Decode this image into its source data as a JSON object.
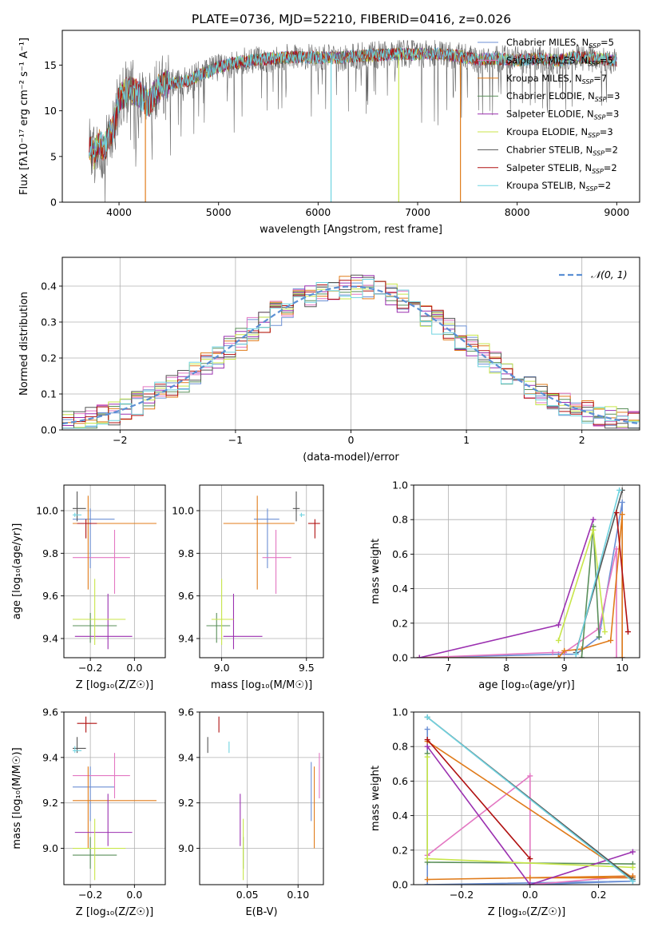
{
  "figure_title": "PLATE=0736, MJD=52210, FIBERID=0416, z=0.026",
  "colors": {
    "chabrier_miles": "#6b8fd4",
    "salpeter_miles": "#e377c2",
    "kroupa_miles": "#e07b1a",
    "chabrier_elodie": "#5a8f5a",
    "salpeter_elodie": "#9b30b0",
    "kroupa_elodie": "#c8e64a",
    "chabrier_stelib": "#555555",
    "salpeter_stelib": "#b01010",
    "kroupa_stelib": "#6fd3e0",
    "gauss": "#5b8fd4",
    "grid": "#b0b0b0"
  },
  "chart_data": [
    {
      "id": "spectrum",
      "type": "line",
      "xlabel": "wavelength [Angstrom, rest frame]",
      "ylabel": "Flux [fλ10⁻¹⁷ erg cm⁻² s⁻¹ A⁻¹]",
      "xlim": [
        3430,
        9230
      ],
      "ylim": [
        0,
        18.8
      ],
      "xticks": [
        4000,
        5000,
        6000,
        7000,
        8000,
        9000
      ],
      "yticks": [
        0,
        5,
        10,
        15
      ],
      "grid": false,
      "legend_position": "top-right",
      "series": [
        {
          "name": "Chabrier MILES, N",
          "sub": "SSP",
          "suffix": "=5",
          "color_key": "chabrier_miles"
        },
        {
          "name": "Salpeter MILES, N",
          "sub": "SSP",
          "suffix": "=5",
          "color_key": "salpeter_miles"
        },
        {
          "name": "Kroupa MILES, N",
          "sub": "SSP",
          "suffix": "=7",
          "color_key": "kroupa_miles"
        },
        {
          "name": "Chabrier ELODIE, N",
          "sub": "SSP",
          "suffix": "=3",
          "color_key": "chabrier_elodie"
        },
        {
          "name": "Salpeter ELODIE, N",
          "sub": "SSP",
          "suffix": "=3",
          "color_key": "salpeter_elodie"
        },
        {
          "name": "Kroupa ELODIE, N",
          "sub": "SSP",
          "suffix": "=3",
          "color_key": "kroupa_elodie"
        },
        {
          "name": "Chabrier STELIB, N",
          "sub": "SSP",
          "suffix": "=2",
          "color_key": "chabrier_stelib"
        },
        {
          "name": "Salpeter STELIB, N",
          "sub": "SSP",
          "suffix": "=2",
          "color_key": "salpeter_stelib"
        },
        {
          "name": "Kroupa STELIB, N",
          "sub": "SSP",
          "suffix": "=2",
          "color_key": "kroupa_stelib"
        }
      ],
      "continuum": {
        "x": [
          3700,
          3750,
          3800,
          3850,
          3900,
          3950,
          4000,
          4100,
          4200,
          4300,
          4400,
          4500,
          4600,
          4700,
          4800,
          4900,
          5000,
          5200,
          5400,
          5600,
          5800,
          6000,
          6200,
          6400,
          6600,
          6800,
          7000,
          7200,
          7400,
          7600,
          7800,
          8000,
          8200,
          8400,
          8600,
          8800,
          9000
        ],
        "y": [
          5.8,
          5.2,
          6.5,
          5.8,
          7.2,
          8.3,
          11.3,
          12.3,
          11.8,
          10.8,
          12.5,
          13.0,
          13.1,
          13.3,
          13.9,
          14.3,
          14.8,
          15.3,
          15.6,
          15.8,
          15.9,
          15.8,
          15.8,
          16.0,
          16.1,
          16.2,
          16.2,
          16.2,
          16.0,
          15.6,
          15.7,
          15.5,
          15.7,
          15.5,
          15.9,
          15.7,
          15.5
        ]
      },
      "dropouts": [
        {
          "x": 4265,
          "color_key": "kroupa_miles"
        },
        {
          "x": 6130,
          "color_key": "kroupa_stelib"
        },
        {
          "x": 6810,
          "color_key": "kroupa_elodie"
        },
        {
          "x": 7430,
          "color_key": "kroupa_miles"
        }
      ]
    },
    {
      "id": "residuals",
      "type": "line",
      "xlabel": "(data-model)/error",
      "ylabel": "Normed distribution",
      "xlim": [
        -2.5,
        2.5
      ],
      "ylim": [
        0,
        0.48
      ],
      "xticks": [
        -2,
        -1,
        0,
        1,
        2
      ],
      "yticks": [
        0.0,
        0.1,
        0.2,
        0.3,
        0.4
      ],
      "grid": true,
      "legend_position": "top-right",
      "gauss_label": "𝒩(0, 1)",
      "bin_width": 0.1
    },
    {
      "id": "age_vs_Z",
      "type": "scatter",
      "xlabel": "Z [log₁₀(Z/Z☉)]",
      "ylabel": "age  [log₁₀(age/yr)]",
      "xlim": [
        -0.32,
        0.14
      ],
      "ylim": [
        9.31,
        10.12
      ],
      "xticks": [
        -0.2,
        0.0
      ],
      "yticks": [
        9.4,
        9.6,
        9.8,
        10.0
      ],
      "grid": true,
      "points": [
        {
          "x": -0.2,
          "y": 9.96,
          "xerr": [
            0.08,
            0.11
          ],
          "yerr": [
            0.23,
            0.05
          ],
          "color_key": "chabrier_miles"
        },
        {
          "x": -0.09,
          "y": 9.78,
          "xerr": [
            0.19,
            0.07
          ],
          "yerr": [
            0.17,
            0.13
          ],
          "color_key": "salpeter_miles"
        },
        {
          "x": -0.21,
          "y": 9.94,
          "xerr": [
            0.07,
            0.31
          ],
          "yerr": [
            0.31,
            0.13
          ],
          "color_key": "kroupa_miles"
        },
        {
          "x": -0.2,
          "y": 9.46,
          "xerr": [
            0.08,
            0.12
          ],
          "yerr": [
            0.08,
            0.06
          ],
          "color_key": "chabrier_elodie"
        },
        {
          "x": -0.12,
          "y": 9.41,
          "xerr": [
            0.15,
            0.11
          ],
          "yerr": [
            0.06,
            0.2
          ],
          "color_key": "salpeter_elodie"
        },
        {
          "x": -0.18,
          "y": 9.49,
          "xerr": [
            0.1,
            0.14
          ],
          "yerr": [
            0.12,
            0.19
          ],
          "color_key": "kroupa_elodie"
        },
        {
          "x": -0.26,
          "y": 10.01,
          "xerr": [
            0.02,
            0.04
          ],
          "yerr": [
            0.06,
            0.08
          ],
          "color_key": "chabrier_stelib"
        },
        {
          "x": -0.22,
          "y": 9.94,
          "xerr": [
            0.04,
            0.05
          ],
          "yerr": [
            0.07,
            0.02
          ],
          "color_key": "salpeter_stelib"
        },
        {
          "x": -0.27,
          "y": 9.98,
          "xerr": [
            0.01,
            0.03
          ],
          "yerr": [
            0.01,
            0.01
          ],
          "color_key": "kroupa_stelib"
        }
      ]
    },
    {
      "id": "age_vs_mass",
      "type": "scatter",
      "xlabel": "mass [log₁₀(M/M☉)]",
      "ylabel": "",
      "xlim": [
        8.87,
        9.6
      ],
      "ylim": [
        9.31,
        10.12
      ],
      "xticks": [
        9.0,
        9.5
      ],
      "yticks": [
        9.4,
        9.6,
        9.8,
        10.0
      ],
      "grid": true,
      "points": [
        {
          "x": 9.27,
          "y": 9.96,
          "xerr": [
            0.08,
            0.07
          ],
          "yerr": [
            0.23,
            0.05
          ],
          "color_key": "chabrier_miles"
        },
        {
          "x": 9.32,
          "y": 9.78,
          "xerr": [
            0.08,
            0.09
          ],
          "yerr": [
            0.17,
            0.13
          ],
          "color_key": "salpeter_miles"
        },
        {
          "x": 9.21,
          "y": 9.94,
          "xerr": [
            0.2,
            0.22
          ],
          "yerr": [
            0.31,
            0.13
          ],
          "color_key": "kroupa_miles"
        },
        {
          "x": 8.97,
          "y": 9.46,
          "xerr": [
            0.06,
            0.08
          ],
          "yerr": [
            0.08,
            0.06
          ],
          "color_key": "chabrier_elodie"
        },
        {
          "x": 9.07,
          "y": 9.41,
          "xerr": [
            0.06,
            0.17
          ],
          "yerr": [
            0.06,
            0.2
          ],
          "color_key": "salpeter_elodie"
        },
        {
          "x": 9.0,
          "y": 9.49,
          "xerr": [
            0.06,
            0.07
          ],
          "yerr": [
            0.12,
            0.19
          ],
          "color_key": "kroupa_elodie"
        },
        {
          "x": 9.44,
          "y": 10.01,
          "xerr": [
            0.02,
            0.02
          ],
          "yerr": [
            0.06,
            0.08
          ],
          "color_key": "chabrier_stelib"
        },
        {
          "x": 9.55,
          "y": 9.94,
          "xerr": [
            0.04,
            0.03
          ],
          "yerr": [
            0.07,
            0.02
          ],
          "color_key": "salpeter_stelib"
        },
        {
          "x": 9.47,
          "y": 9.98,
          "xerr": [
            0.01,
            0.02
          ],
          "yerr": [
            0.01,
            0.01
          ],
          "color_key": "kroupa_stelib"
        }
      ]
    },
    {
      "id": "weight_vs_age",
      "type": "line",
      "xlabel": "age  [log₁₀(age/yr)]",
      "ylabel": "mass weight",
      "xlim": [
        6.4,
        10.3
      ],
      "ylim": [
        0,
        1.0
      ],
      "xticks": [
        7,
        8,
        9,
        10
      ],
      "yticks": [
        0.0,
        0.2,
        0.4,
        0.6,
        0.8,
        1.0
      ],
      "grid": true,
      "series": [
        {
          "color_key": "chabrier_miles",
          "x": [
            6.5,
            8.9,
            9.2,
            9.6,
            10.0,
            10.0
          ],
          "y": [
            0.0,
            0.02,
            0.02,
            0.12,
            0.9,
            0.0
          ]
        },
        {
          "color_key": "salpeter_miles",
          "x": [
            6.5,
            8.8,
            9.0,
            9.6,
            9.9,
            9.9
          ],
          "y": [
            0.0,
            0.03,
            0.03,
            0.17,
            0.63,
            0.0
          ]
        },
        {
          "color_key": "kroupa_miles",
          "x": [
            6.5,
            8.9,
            9.0,
            9.3,
            9.8,
            10.0,
            10.0
          ],
          "y": [
            0.0,
            0.0,
            0.04,
            0.05,
            0.1,
            0.83,
            0.0
          ]
        },
        {
          "color_key": "chabrier_elodie",
          "x": [
            9.3,
            9.5,
            9.6
          ],
          "y": [
            0.0,
            0.76,
            0.12
          ]
        },
        {
          "color_key": "salpeter_elodie",
          "x": [
            6.5,
            8.9,
            9.5
          ],
          "y": [
            0.0,
            0.19,
            0.8
          ]
        },
        {
          "color_key": "kroupa_elodie",
          "x": [
            8.9,
            9.5,
            9.7
          ],
          "y": [
            0.1,
            0.74,
            0.15
          ]
        },
        {
          "color_key": "chabrier_stelib",
          "x": [
            9.2,
            10.0
          ],
          "y": [
            0.03,
            0.97
          ]
        },
        {
          "color_key": "salpeter_stelib",
          "x": [
            9.9,
            10.1
          ],
          "y": [
            0.84,
            0.15
          ]
        },
        {
          "color_key": "kroupa_stelib",
          "x": [
            9.2,
            9.95
          ],
          "y": [
            0.02,
            0.97
          ]
        }
      ]
    },
    {
      "id": "mass_vs_Z",
      "type": "scatter",
      "xlabel": "Z [log₁₀(Z/Z☉)]",
      "ylabel": "mass [log₁₀(M/M☉)]",
      "xlim": [
        -0.32,
        0.14
      ],
      "ylim": [
        8.84,
        9.6
      ],
      "xticks": [
        -0.2,
        0.0
      ],
      "yticks": [
        9.0,
        9.2,
        9.4,
        9.6
      ],
      "grid": true,
      "points": [
        {
          "x": -0.2,
          "y": 9.27,
          "xerr": [
            0.08,
            0.11
          ],
          "yerr": [
            0.15,
            0.09
          ],
          "color_key": "chabrier_miles"
        },
        {
          "x": -0.09,
          "y": 9.32,
          "xerr": [
            0.19,
            0.07
          ],
          "yerr": [
            0.1,
            0.1
          ],
          "color_key": "salpeter_miles"
        },
        {
          "x": -0.21,
          "y": 9.21,
          "xerr": [
            0.07,
            0.31
          ],
          "yerr": [
            0.21,
            0.15
          ],
          "color_key": "kroupa_miles"
        },
        {
          "x": -0.2,
          "y": 8.97,
          "xerr": [
            0.08,
            0.12
          ],
          "yerr": [
            0.06,
            0.08
          ],
          "color_key": "chabrier_elodie"
        },
        {
          "x": -0.12,
          "y": 9.07,
          "xerr": [
            0.15,
            0.11
          ],
          "yerr": [
            0.06,
            0.17
          ],
          "color_key": "salpeter_elodie"
        },
        {
          "x": -0.18,
          "y": 9.0,
          "xerr": [
            0.1,
            0.14
          ],
          "yerr": [
            0.14,
            0.13
          ],
          "color_key": "kroupa_elodie"
        },
        {
          "x": -0.26,
          "y": 9.44,
          "xerr": [
            0.02,
            0.04
          ],
          "yerr": [
            0.02,
            0.05
          ],
          "color_key": "chabrier_stelib"
        },
        {
          "x": -0.22,
          "y": 9.55,
          "xerr": [
            0.04,
            0.05
          ],
          "yerr": [
            0.04,
            0.03
          ],
          "color_key": "salpeter_stelib"
        },
        {
          "x": -0.27,
          "y": 9.43,
          "xerr": [
            0.01,
            0.03
          ],
          "yerr": [
            0.01,
            0.02
          ],
          "color_key": "kroupa_stelib"
        }
      ]
    },
    {
      "id": "mass_vs_ebv",
      "type": "scatter",
      "xlabel": "E(B-V)",
      "ylabel": "",
      "xlim": [
        0.003,
        0.125
      ],
      "ylim": [
        8.84,
        9.6
      ],
      "xticks": [
        0.05,
        0.1
      ],
      "yticks": [
        9.0,
        9.2,
        9.4,
        9.6
      ],
      "grid": true,
      "points": [
        {
          "x": 0.113,
          "y": 9.27,
          "xerr": [
            0,
            0
          ],
          "yerr": [
            0.15,
            0.11
          ],
          "color_key": "chabrier_miles"
        },
        {
          "x": 0.121,
          "y": 9.32,
          "xerr": [
            0,
            0
          ],
          "yerr": [
            0.1,
            0.1
          ],
          "color_key": "salpeter_miles"
        },
        {
          "x": 0.116,
          "y": 9.21,
          "xerr": [
            0,
            0
          ],
          "yerr": [
            0.21,
            0.15
          ],
          "color_key": "kroupa_miles"
        },
        {
          "x": 0.046,
          "y": 8.97,
          "xerr": [
            0,
            0
          ],
          "yerr": [
            0.06,
            0.08
          ],
          "color_key": "chabrier_elodie"
        },
        {
          "x": 0.043,
          "y": 9.07,
          "xerr": [
            0,
            0
          ],
          "yerr": [
            0.06,
            0.17
          ],
          "color_key": "salpeter_elodie"
        },
        {
          "x": 0.046,
          "y": 9.0,
          "xerr": [
            0,
            0
          ],
          "yerr": [
            0.14,
            0.13
          ],
          "color_key": "kroupa_elodie"
        },
        {
          "x": 0.011,
          "y": 9.44,
          "xerr": [
            0,
            0
          ],
          "yerr": [
            0.02,
            0.05
          ],
          "color_key": "chabrier_stelib"
        },
        {
          "x": 0.022,
          "y": 9.55,
          "xerr": [
            0,
            0
          ],
          "yerr": [
            0.04,
            0.03
          ],
          "color_key": "salpeter_stelib"
        },
        {
          "x": 0.032,
          "y": 9.43,
          "xerr": [
            0,
            0
          ],
          "yerr": [
            0.01,
            0.04
          ],
          "color_key": "kroupa_stelib"
        }
      ]
    },
    {
      "id": "weight_vs_Z",
      "type": "line",
      "xlabel": "Z [log₁₀(Z/Z☉)]",
      "ylabel": "mass weight",
      "xlim": [
        -0.34,
        0.32
      ],
      "ylim": [
        0,
        1.0
      ],
      "xticks": [
        -0.2,
        0.0,
        0.2
      ],
      "yticks": [
        0.0,
        0.2,
        0.4,
        0.6,
        0.8,
        1.0
      ],
      "grid": true,
      "series": [
        {
          "color_key": "chabrier_miles",
          "x": [
            -0.3,
            -0.3,
            0.0,
            0.3,
            -0.3
          ],
          "y": [
            0.9,
            0.0,
            0.0,
            0.02,
            0.0
          ]
        },
        {
          "color_key": "salpeter_miles",
          "x": [
            -0.3,
            0.0,
            0.0,
            0.3
          ],
          "y": [
            0.17,
            0.63,
            0.0,
            0.05
          ]
        },
        {
          "color_key": "kroupa_miles",
          "x": [
            -0.3,
            0.3,
            0.0,
            0.3,
            -0.3
          ],
          "y": [
            0.83,
            0.04,
            0.04,
            0.05,
            0.03
          ]
        },
        {
          "color_key": "chabrier_elodie",
          "x": [
            -0.3,
            -0.3,
            0.3
          ],
          "y": [
            0.76,
            0.13,
            0.12
          ]
        },
        {
          "color_key": "salpeter_elodie",
          "x": [
            -0.3,
            0.0,
            0.3
          ],
          "y": [
            0.8,
            0.0,
            0.19
          ]
        },
        {
          "color_key": "kroupa_elodie",
          "x": [
            -0.3,
            -0.3,
            0.3
          ],
          "y": [
            0.74,
            0.15,
            0.1
          ]
        },
        {
          "color_key": "chabrier_stelib",
          "x": [
            -0.3,
            0.3
          ],
          "y": [
            0.97,
            0.03
          ]
        },
        {
          "color_key": "salpeter_stelib",
          "x": [
            -0.3,
            0.0
          ],
          "y": [
            0.84,
            0.15
          ]
        },
        {
          "color_key": "kroupa_stelib",
          "x": [
            -0.3,
            0.3
          ],
          "y": [
            0.97,
            0.02
          ]
        }
      ]
    }
  ]
}
